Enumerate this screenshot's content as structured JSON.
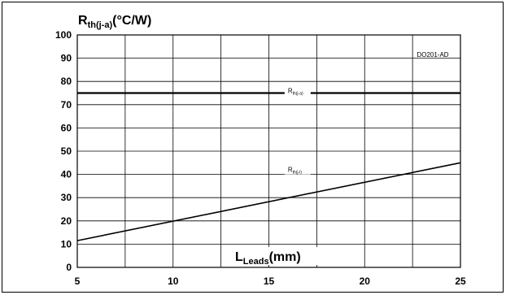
{
  "chart_data": {
    "type": "line",
    "y_label": {
      "main": "R",
      "sub": "th(j-a)",
      "unit": "(°C/W)"
    },
    "x_label": {
      "main": "L",
      "sub": "Leads",
      "unit": "(mm)"
    },
    "annotation": "DO201-AD",
    "xlim": [
      5,
      25
    ],
    "ylim": [
      0,
      100
    ],
    "x_ticks": [
      5,
      10,
      15,
      20,
      25
    ],
    "y_ticks": [
      0,
      10,
      20,
      30,
      40,
      50,
      60,
      70,
      80,
      90,
      100
    ],
    "grid": true,
    "series": [
      {
        "label_main": "R",
        "label_sub": "th(j-a)",
        "x": [
          5,
          25
        ],
        "y": [
          75,
          75
        ],
        "label_x": 16.5,
        "label_y": 75
      },
      {
        "label_main": "R",
        "label_sub": "th(j-l)",
        "x": [
          5,
          25
        ],
        "y": [
          11.5,
          45
        ],
        "label_x": 16.5,
        "label_y": 41
      }
    ]
  }
}
